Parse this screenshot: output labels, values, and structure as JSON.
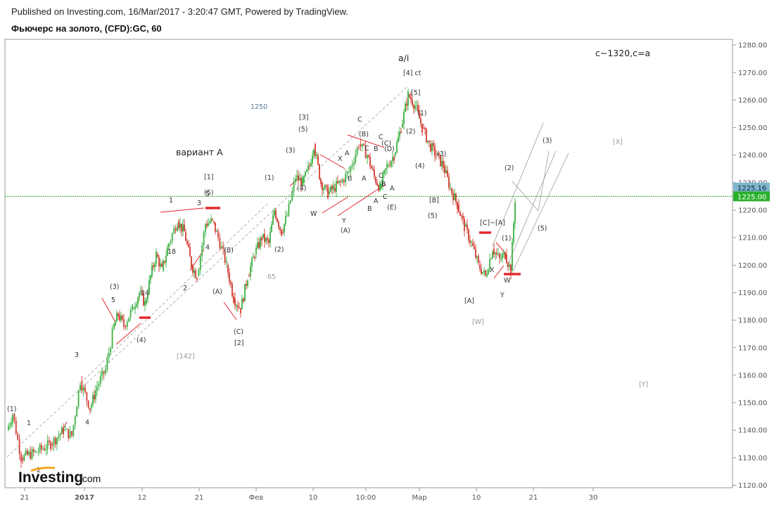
{
  "header": {
    "published": "Published on Investing.com, 16/Mar/2017 - 3:20:47 GMT, Powered by TradingView.",
    "symbol": "Фьючерс на золото, (CFD):GC, 60"
  },
  "logo": {
    "brand": "Investing",
    "suffix": ".com"
  },
  "colors": {
    "up": "#3cb043",
    "down": "#d23a2f",
    "ref_line": "#2fae2f",
    "price_box": "#28b02c",
    "prev_box": "#7fb6cc",
    "marker": "#e3262b"
  },
  "chart_data": {
    "type": "candlestick",
    "title": "Фьючерс на золото, (CFD):GC, 60",
    "ylim": [
      1118,
      1283
    ],
    "y_ticks": [
      "1120.00",
      "1130.00",
      "1140.00",
      "1150.00",
      "1160.00",
      "1170.00",
      "1180.00",
      "1190.00",
      "1200.00",
      "1210.00",
      "1220.00",
      "1230.00",
      "1240.00",
      "1250.00",
      "1260.00",
      "1270.00",
      "1280.00"
    ],
    "x_ticks": [
      "21",
      "2017",
      "12",
      "21",
      "Фев",
      "10",
      "10:00",
      "Мар",
      "10",
      "21",
      "30"
    ],
    "last_price": "1225.00",
    "prev_price": "1225.16",
    "price_path": [
      [
        "21",
        1140
      ],
      [
        "21",
        1128
      ],
      [
        "21",
        1136
      ],
      [
        "21",
        1132
      ],
      [
        "2017",
        1142
      ],
      [
        "2017",
        1162
      ],
      [
        "2017",
        1150
      ],
      [
        "2017",
        1165
      ],
      [
        "12",
        1185
      ],
      [
        "12",
        1172
      ],
      [
        "12",
        1190
      ],
      [
        "12",
        1205
      ],
      [
        "12",
        1196
      ],
      [
        "21",
        1217
      ],
      [
        "21",
        1205
      ],
      [
        "21",
        1200
      ],
      [
        "21",
        1214
      ],
      [
        "21",
        1218
      ],
      [
        "21",
        1200
      ],
      [
        "Фев",
        1180
      ],
      [
        "Фев",
        1198
      ],
      [
        "Фев",
        1220
      ],
      [
        "Фев",
        1232
      ],
      [
        "Фев",
        1222
      ],
      [
        "10",
        1246
      ],
      [
        "10",
        1226
      ],
      [
        "10",
        1232
      ],
      [
        "10",
        1228
      ],
      [
        "10:00",
        1245
      ],
      [
        "10:00",
        1232
      ],
      [
        "10:00",
        1240
      ],
      [
        "10:00",
        1234
      ],
      [
        "10:00",
        1265
      ],
      [
        "Мар",
        1250
      ],
      [
        "Мар",
        1234
      ],
      [
        "Мар",
        1228
      ],
      [
        "Мар",
        1214
      ],
      [
        "10",
        1195
      ],
      [
        "10",
        1210
      ],
      [
        "10",
        1200
      ],
      [
        "21",
        1225
      ]
    ],
    "annotations": [
      {
        "text": "c~1320,c=a"
      },
      {
        "text": "вариант А"
      },
      {
        "text": "a/i"
      },
      {
        "text": "1250"
      },
      {
        "text": "65"
      },
      {
        "text": "18"
      },
      {
        "text": "24"
      },
      {
        "text": "[142]"
      },
      {
        "text": "[X]"
      },
      {
        "text": "[Y]"
      },
      {
        "text": "[W]"
      },
      {
        "text": "(1)"
      },
      {
        "text": "1"
      },
      {
        "text": "2"
      },
      {
        "text": "3"
      },
      {
        "text": "4"
      },
      {
        "text": "(3)"
      },
      {
        "text": "5"
      },
      {
        "text": "(4)"
      },
      {
        "text": "1"
      },
      {
        "text": "2"
      },
      {
        "text": "3"
      },
      {
        "text": "4"
      },
      {
        "text": "5"
      },
      {
        "text": "[1]"
      },
      {
        "text": "(5)"
      },
      {
        "text": "(B)"
      },
      {
        "text": "(A)"
      },
      {
        "text": "(C)"
      },
      {
        "text": "[2]"
      },
      {
        "text": "(1)"
      },
      {
        "text": "(2)"
      },
      {
        "text": "(3)"
      },
      {
        "text": "(4)"
      },
      {
        "text": "[3]"
      },
      {
        "text": "(5)"
      },
      {
        "text": "W"
      },
      {
        "text": "X"
      },
      {
        "text": "Y"
      },
      {
        "text": "(A)"
      },
      {
        "text": "A"
      },
      {
        "text": "B"
      },
      {
        "text": "C"
      },
      {
        "text": "(B)"
      },
      {
        "text": "C"
      },
      {
        "text": "B"
      },
      {
        "text": "A"
      },
      {
        "text": "A"
      },
      {
        "text": "B"
      },
      {
        "text": "C"
      },
      {
        "text": "(C)"
      },
      {
        "text": "(D)"
      },
      {
        "text": "C"
      },
      {
        "text": "B"
      },
      {
        "text": "A"
      },
      {
        "text": "C"
      },
      {
        "text": "(E)"
      },
      {
        "text": "[4] ct"
      },
      {
        "text": "[5]"
      },
      {
        "text": "(2)"
      },
      {
        "text": "(1)"
      },
      {
        "text": "(4)"
      },
      {
        "text": "(3)"
      },
      {
        "text": "[B]"
      },
      {
        "text": "(5)"
      },
      {
        "text": "[A]"
      },
      {
        "text": "[C]~[A]"
      },
      {
        "text": "(1)"
      },
      {
        "text": "X"
      },
      {
        "text": "W"
      },
      {
        "text": "Y"
      },
      {
        "text": "(2)"
      },
      {
        "text": "(3)"
      },
      {
        "text": "(5)"
      },
      {
        "text": "(4)"
      }
    ]
  }
}
